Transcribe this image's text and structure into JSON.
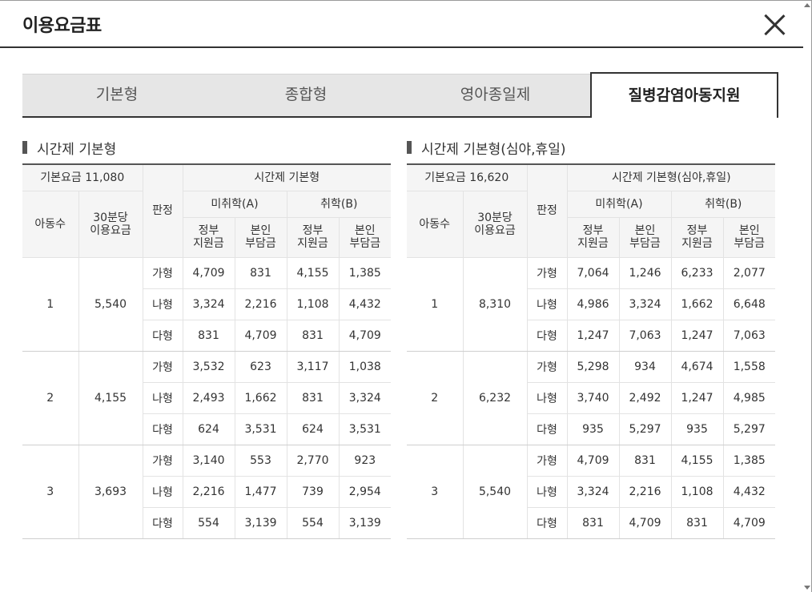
{
  "dialog": {
    "title": "이용요금표",
    "close_label": "×"
  },
  "tabs": [
    {
      "label": "기본형",
      "active": false
    },
    {
      "label": "종합형",
      "active": false
    },
    {
      "label": "영아종일제",
      "active": false
    },
    {
      "label": "질병감염아동지원",
      "active": true
    }
  ],
  "tables": [
    {
      "section_title": "시간제 기본형",
      "base_fee_label": "기본요금 11,080",
      "col_children": "아동수",
      "col_rate": "30분당\n이용요금",
      "col_judgement": "판정",
      "group_title": "시간제 기본형",
      "sub_a": "미취학(A)",
      "sub_b": "취학(B)",
      "gov_label": "정부\n지원금",
      "self_label": "본인\n부담금",
      "groups": [
        {
          "children": "1",
          "rate": "5,540",
          "rows": [
            {
              "grade": "가형",
              "a_gov": "4,709",
              "a_self": "831",
              "b_gov": "4,155",
              "b_self": "1,385"
            },
            {
              "grade": "나형",
              "a_gov": "3,324",
              "a_self": "2,216",
              "b_gov": "1,108",
              "b_self": "4,432"
            },
            {
              "grade": "다형",
              "a_gov": "831",
              "a_self": "4,709",
              "b_gov": "831",
              "b_self": "4,709"
            }
          ]
        },
        {
          "children": "2",
          "rate": "4,155",
          "rows": [
            {
              "grade": "가형",
              "a_gov": "3,532",
              "a_self": "623",
              "b_gov": "3,117",
              "b_self": "1,038"
            },
            {
              "grade": "나형",
              "a_gov": "2,493",
              "a_self": "1,662",
              "b_gov": "831",
              "b_self": "3,324"
            },
            {
              "grade": "다형",
              "a_gov": "624",
              "a_self": "3,531",
              "b_gov": "624",
              "b_self": "3,531"
            }
          ]
        },
        {
          "children": "3",
          "rate": "3,693",
          "rows": [
            {
              "grade": "가형",
              "a_gov": "3,140",
              "a_self": "553",
              "b_gov": "2,770",
              "b_self": "923"
            },
            {
              "grade": "나형",
              "a_gov": "2,216",
              "a_self": "1,477",
              "b_gov": "739",
              "b_self": "2,954"
            },
            {
              "grade": "다형",
              "a_gov": "554",
              "a_self": "3,139",
              "b_gov": "554",
              "b_self": "3,139"
            }
          ]
        }
      ]
    },
    {
      "section_title": "시간제 기본형(심야,휴일)",
      "base_fee_label": "기본요금 16,620",
      "col_children": "아동수",
      "col_rate": "30분당\n이용요금",
      "col_judgement": "판정",
      "group_title": "시간제 기본형(심야,휴일)",
      "sub_a": "미취학(A)",
      "sub_b": "취학(B)",
      "gov_label": "정부\n지원금",
      "self_label": "본인\n부담금",
      "groups": [
        {
          "children": "1",
          "rate": "8,310",
          "rows": [
            {
              "grade": "가형",
              "a_gov": "7,064",
              "a_self": "1,246",
              "b_gov": "6,233",
              "b_self": "2,077"
            },
            {
              "grade": "나형",
              "a_gov": "4,986",
              "a_self": "3,324",
              "b_gov": "1,662",
              "b_self": "6,648"
            },
            {
              "grade": "다형",
              "a_gov": "1,247",
              "a_self": "7,063",
              "b_gov": "1,247",
              "b_self": "7,063"
            }
          ]
        },
        {
          "children": "2",
          "rate": "6,232",
          "rows": [
            {
              "grade": "가형",
              "a_gov": "5,298",
              "a_self": "934",
              "b_gov": "4,674",
              "b_self": "1,558"
            },
            {
              "grade": "나형",
              "a_gov": "3,740",
              "a_self": "2,492",
              "b_gov": "1,247",
              "b_self": "4,985"
            },
            {
              "grade": "다형",
              "a_gov": "935",
              "a_self": "5,297",
              "b_gov": "935",
              "b_self": "5,297"
            }
          ]
        },
        {
          "children": "3",
          "rate": "5,540",
          "rows": [
            {
              "grade": "가형",
              "a_gov": "4,709",
              "a_self": "831",
              "b_gov": "4,155",
              "b_self": "1,385"
            },
            {
              "grade": "나형",
              "a_gov": "3,324",
              "a_self": "2,216",
              "b_gov": "1,108",
              "b_self": "4,432"
            },
            {
              "grade": "다형",
              "a_gov": "831",
              "a_self": "4,709",
              "b_gov": "831",
              "b_self": "4,709"
            }
          ]
        }
      ]
    }
  ]
}
